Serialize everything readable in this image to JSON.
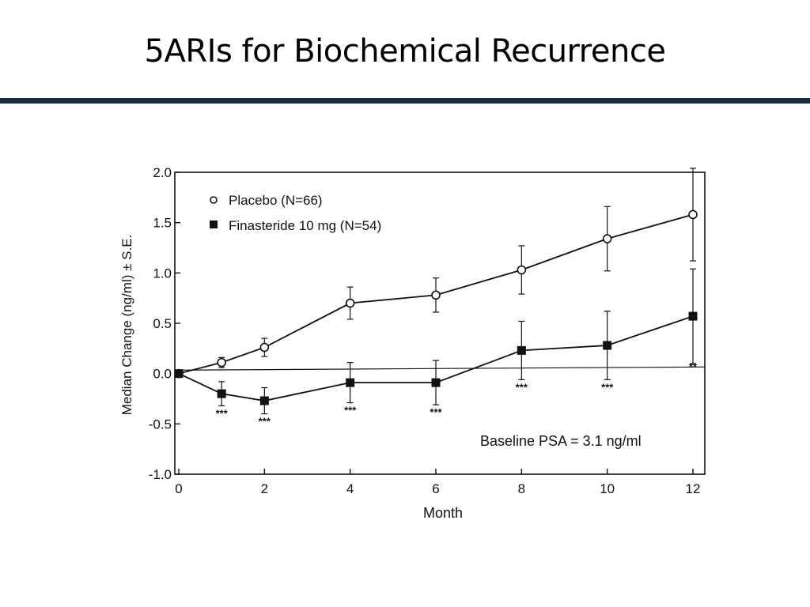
{
  "slide": {
    "title": "5ARIs for Biochemical Recurrence",
    "accent_color": "#1c2a3d"
  },
  "chart_data": {
    "type": "line",
    "xlabel": "Month",
    "ylabel": "Median Change (ng/ml) ± S.E.",
    "xlim": [
      0,
      12
    ],
    "ylim": [
      -1.0,
      2.0
    ],
    "x_ticks": [
      "0",
      "2",
      "4",
      "6",
      "8",
      "10",
      "12"
    ],
    "y_ticks": [
      "2.0",
      "1.5",
      "1.0",
      "0.5",
      "0.0",
      "-0.5",
      "-1.0"
    ],
    "reference_line_y": 0.05,
    "legend_placement": "top-left",
    "annotation": "Baseline PSA = 3.1 ng/ml",
    "series": [
      {
        "name": "Placebo (N=66)",
        "marker": "open-circle",
        "x": [
          0,
          1,
          2,
          4,
          6,
          8,
          10,
          12
        ],
        "y": [
          0.0,
          0.11,
          0.26,
          0.7,
          0.78,
          1.03,
          1.34,
          1.58
        ],
        "se": [
          0.0,
          0.05,
          0.09,
          0.16,
          0.17,
          0.24,
          0.32,
          0.46
        ]
      },
      {
        "name": "Finasteride 10 mg (N=54)",
        "marker": "filled-square",
        "x": [
          0,
          1,
          2,
          4,
          6,
          8,
          10,
          12
        ],
        "y": [
          0.0,
          -0.2,
          -0.27,
          -0.09,
          -0.09,
          0.23,
          0.28,
          0.57
        ],
        "se": [
          0.0,
          0.12,
          0.13,
          0.2,
          0.22,
          0.29,
          0.34,
          0.47
        ]
      }
    ],
    "significance_marks": [
      {
        "x": 1,
        "label": "***"
      },
      {
        "x": 2,
        "label": "***"
      },
      {
        "x": 4,
        "label": "***"
      },
      {
        "x": 6,
        "label": "***"
      },
      {
        "x": 8,
        "label": "***"
      },
      {
        "x": 10,
        "label": "***"
      },
      {
        "x": 12,
        "label": "**"
      }
    ]
  }
}
